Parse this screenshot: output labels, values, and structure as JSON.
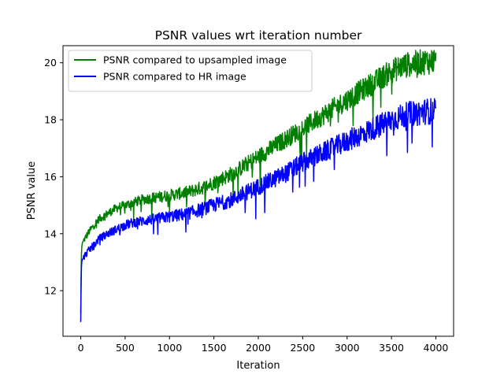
{
  "chart_data": {
    "type": "line",
    "title": "PSNR values wrt iteration number",
    "xlabel": "Iteration",
    "ylabel": "PSNR value",
    "xlim": [
      -200,
      4200
    ],
    "ylim": [
      10.4,
      20.6
    ],
    "xticks": [
      0,
      500,
      1000,
      1500,
      2000,
      2500,
      3000,
      3500,
      4000
    ],
    "yticks": [
      12,
      14,
      16,
      18,
      20
    ],
    "grid": false,
    "legend": "upper-left",
    "series": [
      {
        "name": "PSNR compared to upsampled image",
        "color": "#008000",
        "x": [
          0,
          5,
          10,
          20,
          40,
          60,
          100,
          150,
          200,
          300,
          400,
          500,
          600,
          700,
          800,
          900,
          1000,
          1100,
          1200,
          1300,
          1400,
          1500,
          1600,
          1700,
          1800,
          1900,
          2000,
          2100,
          2200,
          2300,
          2400,
          2500,
          2600,
          2700,
          2800,
          2900,
          3000,
          3100,
          3200,
          3300,
          3400,
          3500,
          3600,
          3700,
          3800,
          3900,
          3950,
          4000
        ],
        "values": [
          11.2,
          12.9,
          13.5,
          13.7,
          13.8,
          13.9,
          14.1,
          14.3,
          14.5,
          14.7,
          14.9,
          15.0,
          15.1,
          15.2,
          15.25,
          15.3,
          15.35,
          15.4,
          15.45,
          15.55,
          15.65,
          15.8,
          15.95,
          16.1,
          16.3,
          16.5,
          16.7,
          16.9,
          17.1,
          17.3,
          17.5,
          17.7,
          17.9,
          18.1,
          18.3,
          18.5,
          18.7,
          18.9,
          19.1,
          19.3,
          19.5,
          19.7,
          19.85,
          19.95,
          20.0,
          20.05,
          20.05,
          20.1
        ]
      },
      {
        "name": "PSNR compared to HR image",
        "color": "#0000ff",
        "x": [
          0,
          5,
          10,
          20,
          40,
          60,
          100,
          150,
          200,
          300,
          400,
          500,
          600,
          700,
          800,
          900,
          1000,
          1100,
          1200,
          1300,
          1400,
          1500,
          1600,
          1700,
          1800,
          1900,
          2000,
          2100,
          2200,
          2300,
          2400,
          2500,
          2600,
          2700,
          2800,
          2900,
          3000,
          3100,
          3200,
          3300,
          3400,
          3500,
          3600,
          3700,
          3800,
          3900,
          3950,
          4000
        ],
        "values": [
          10.9,
          12.5,
          13.0,
          13.1,
          13.2,
          13.3,
          13.45,
          13.6,
          13.8,
          14.0,
          14.15,
          14.3,
          14.4,
          14.45,
          14.5,
          14.55,
          14.6,
          14.65,
          14.7,
          14.8,
          14.9,
          15.0,
          15.1,
          15.2,
          15.35,
          15.5,
          15.65,
          15.8,
          15.95,
          16.1,
          16.3,
          16.5,
          16.65,
          16.8,
          16.95,
          17.1,
          17.25,
          17.4,
          17.55,
          17.7,
          17.85,
          18.0,
          18.1,
          18.2,
          18.25,
          18.3,
          18.3,
          18.3
        ]
      }
    ]
  }
}
